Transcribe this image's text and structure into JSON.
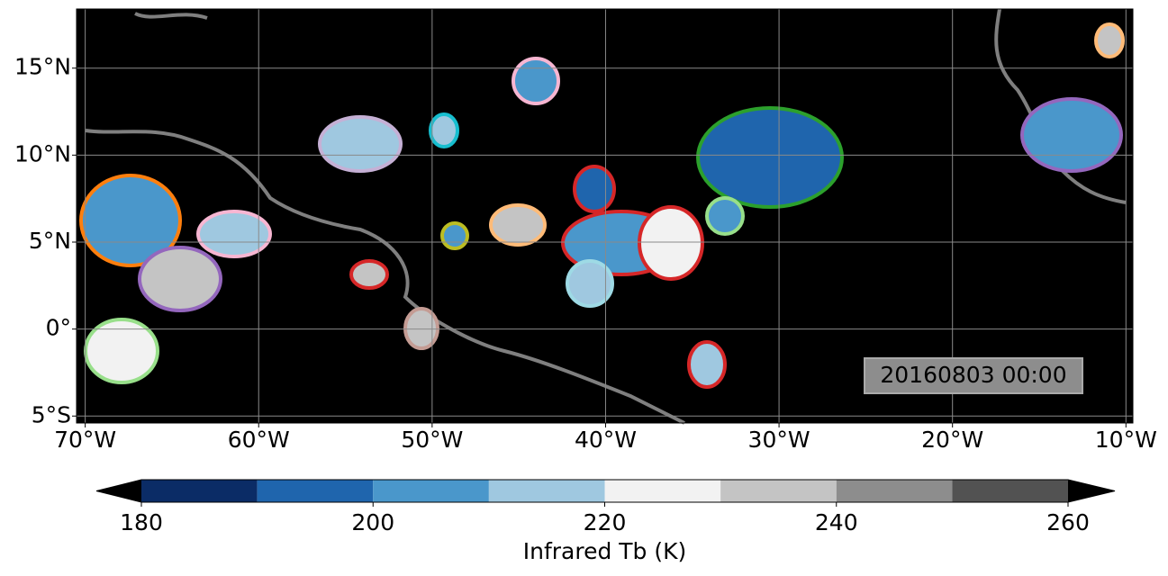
{
  "map": {
    "lon_range": [
      -70.5,
      -9.6
    ],
    "lat_range": [
      -5.4,
      18.4
    ],
    "xticks": [
      {
        "value": -70,
        "label": "70°W"
      },
      {
        "value": -60,
        "label": "60°W"
      },
      {
        "value": -50,
        "label": "50°W"
      },
      {
        "value": -40,
        "label": "40°W"
      },
      {
        "value": -30,
        "label": "30°W"
      },
      {
        "value": -20,
        "label": "20°W"
      },
      {
        "value": -10,
        "label": "10°W"
      }
    ],
    "yticks": [
      {
        "value": -5,
        "label": "5°S"
      },
      {
        "value": 0,
        "label": "0°"
      },
      {
        "value": 5,
        "label": "5°N"
      },
      {
        "value": 10,
        "label": "10°N"
      },
      {
        "value": 15,
        "label": "15°N"
      }
    ],
    "grid": true,
    "timestamp": "20160803 00:00"
  },
  "colorbar": {
    "label": "Infrared Tb (K)",
    "levels": [
      180,
      190,
      200,
      210,
      220,
      230,
      240,
      250,
      260
    ],
    "colors": [
      "#0b2c66",
      "#1f65ad",
      "#4a97cb",
      "#9fc8e0",
      "#f2f2f2",
      "#c4c4c4",
      "#8d8d8d",
      "#525252"
    ],
    "ticks": [
      180,
      200,
      220,
      240,
      260
    ],
    "extend_colors": [
      "#000000",
      "#000000"
    ]
  }
}
